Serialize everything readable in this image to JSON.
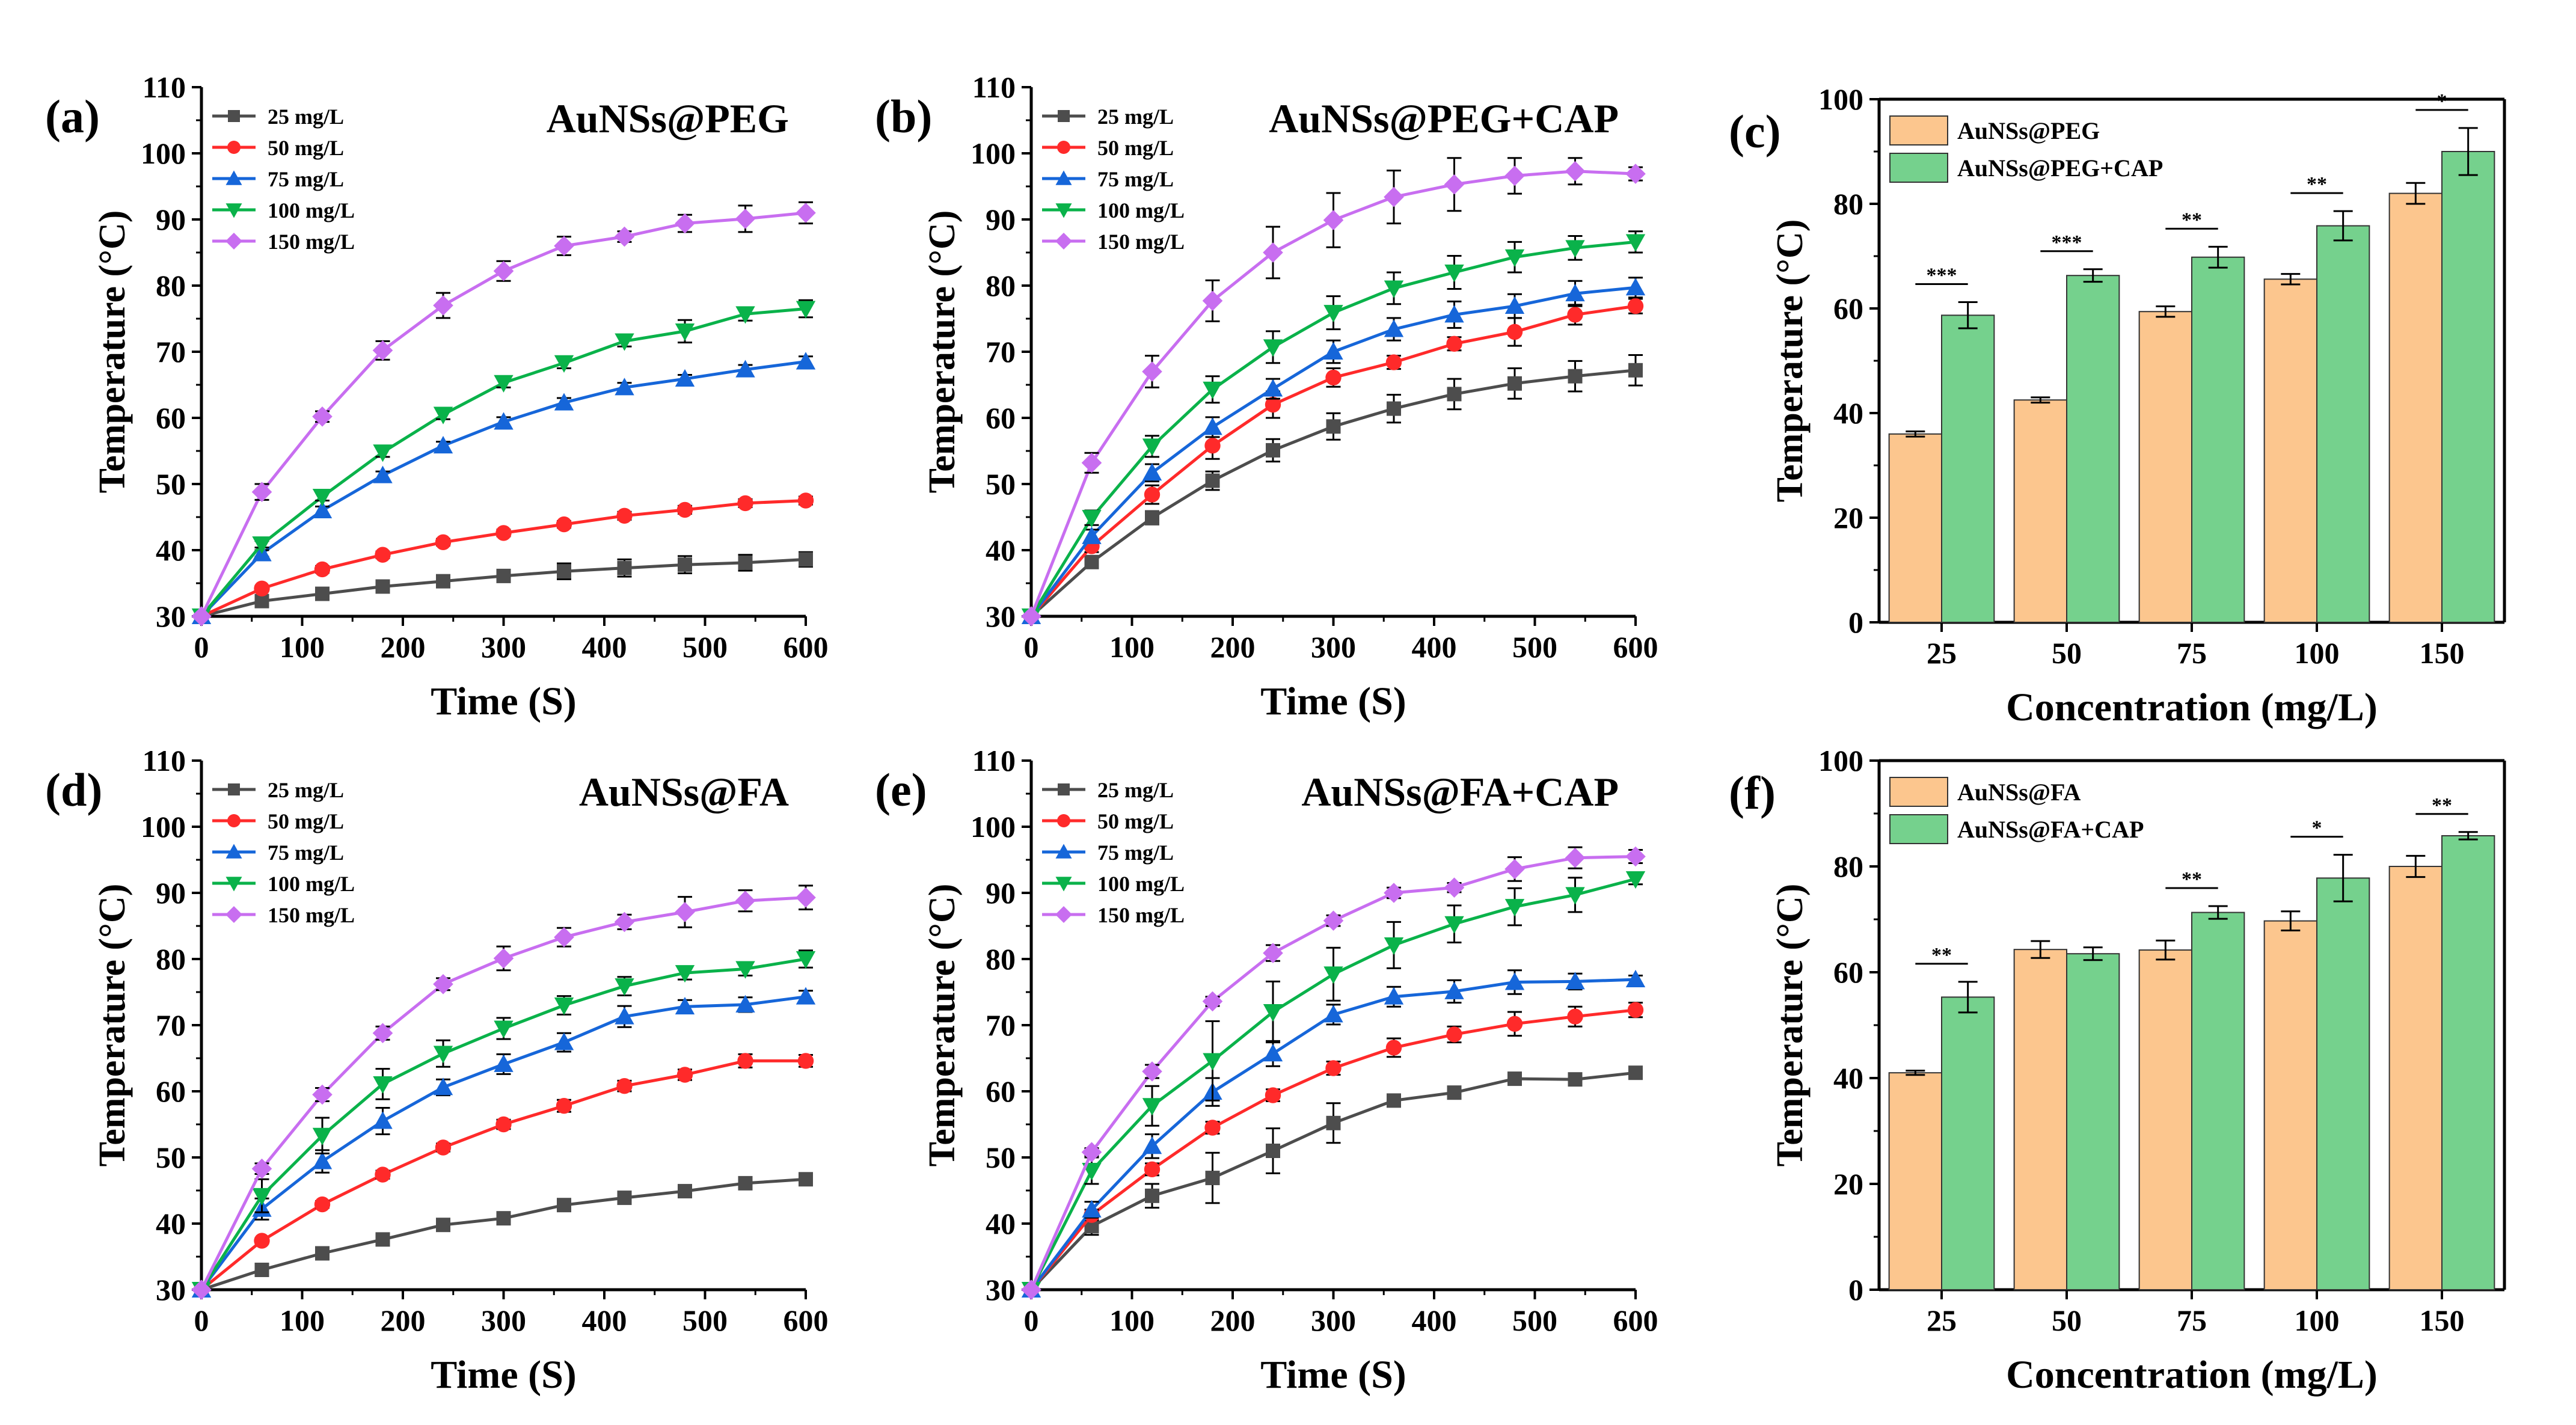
{
  "chart_data": [
    {
      "panel_label": "(a)",
      "title": "AuNSs@PEG",
      "type": "line",
      "xlabel": "Time (S)",
      "ylabel": "Temperature (°C)",
      "xlim": [
        0,
        600
      ],
      "ylim": [
        30,
        110
      ],
      "xticks": [
        0,
        100,
        200,
        300,
        400,
        500,
        600
      ],
      "yticks": [
        30,
        40,
        50,
        60,
        70,
        80,
        90,
        100,
        110
      ],
      "x": [
        0,
        60,
        120,
        180,
        240,
        300,
        360,
        420,
        480,
        540,
        600
      ],
      "legend_position": "top-left",
      "series": [
        {
          "name": "25 mg/L",
          "color": "#4d4d4d",
          "marker": "square",
          "values": [
            30,
            32.3,
            33.4,
            34.5,
            35.3,
            36.1,
            36.8,
            37.3,
            37.8,
            38.1,
            38.6
          ],
          "errors": [
            0.3,
            0.4,
            0.5,
            0.5,
            0.6,
            0.6,
            1.2,
            1.3,
            1.3,
            1.2,
            1.1
          ]
        },
        {
          "name": "50 mg/L",
          "color": "#ff2a2a",
          "marker": "circle",
          "values": [
            30,
            34.2,
            37.1,
            39.3,
            41.2,
            42.6,
            43.9,
            45.2,
            46.1,
            47.1,
            47.5
          ],
          "errors": [
            0.3,
            0.4,
            0.5,
            0.5,
            0.5,
            0.5,
            0.5,
            0.6,
            0.6,
            0.6,
            0.6
          ]
        },
        {
          "name": "75 mg/L",
          "color": "#1666d9",
          "marker": "triangle-up",
          "values": [
            30,
            39.5,
            46.0,
            51.3,
            55.8,
            59.4,
            62.3,
            64.6,
            65.9,
            67.3,
            68.5
          ],
          "errors": [
            0.3,
            0.5,
            0.6,
            0.6,
            0.6,
            0.7,
            0.7,
            0.7,
            0.6,
            0.7,
            0.8
          ]
        },
        {
          "name": "100 mg/L",
          "color": "#0ab24a",
          "marker": "triangle-down",
          "values": [
            30,
            40.9,
            48.1,
            54.8,
            60.5,
            65.3,
            68.3,
            71.6,
            73.1,
            75.7,
            76.5
          ],
          "errors": [
            0.3,
            0.5,
            0.6,
            0.7,
            0.7,
            0.7,
            0.8,
            0.8,
            1.7,
            1.0,
            1.3
          ]
        },
        {
          "name": "150 mg/L",
          "color": "#c86ef0",
          "marker": "diamond",
          "values": [
            30,
            48.8,
            60.2,
            70.2,
            77.0,
            82.2,
            86.0,
            87.4,
            89.4,
            90.1,
            91.0
          ],
          "errors": [
            0.3,
            1.2,
            0.8,
            1.4,
            1.9,
            1.5,
            1.4,
            0.8,
            1.3,
            2.0,
            1.6
          ]
        }
      ]
    },
    {
      "panel_label": "(b)",
      "title": "AuNSs@PEG+CAP",
      "type": "line",
      "xlabel": "Time (S)",
      "ylabel": "Temperature (°C)",
      "xlim": [
        0,
        600
      ],
      "ylim": [
        30,
        110
      ],
      "xticks": [
        0,
        100,
        200,
        300,
        400,
        500,
        600
      ],
      "yticks": [
        30,
        40,
        50,
        60,
        70,
        80,
        90,
        100,
        110
      ],
      "x": [
        0,
        60,
        120,
        180,
        240,
        300,
        360,
        420,
        480,
        540,
        600
      ],
      "legend_position": "top-left",
      "series": [
        {
          "name": "25 mg/L",
          "color": "#4d4d4d",
          "marker": "square",
          "values": [
            30,
            38.2,
            44.9,
            50.5,
            55.1,
            58.7,
            61.4,
            63.6,
            65.2,
            66.3,
            67.2
          ],
          "errors": [
            0.3,
            0.7,
            1.0,
            1.4,
            1.7,
            2.0,
            2.1,
            2.3,
            2.3,
            2.3,
            2.3
          ]
        },
        {
          "name": "50 mg/L",
          "color": "#ff2a2a",
          "marker": "circle",
          "values": [
            30,
            40.6,
            48.4,
            55.8,
            62.0,
            66.1,
            68.4,
            71.2,
            73.0,
            75.6,
            76.9
          ],
          "errors": [
            0.3,
            0.9,
            1.4,
            2.0,
            2.0,
            1.4,
            1.0,
            1.0,
            2.1,
            1.5,
            1.1
          ]
        },
        {
          "name": "75 mg/L",
          "color": "#1666d9",
          "marker": "triangle-up",
          "values": [
            30,
            42.1,
            51.7,
            58.6,
            64.4,
            70.0,
            73.4,
            75.6,
            76.9,
            78.8,
            79.7
          ],
          "errors": [
            0.3,
            1.0,
            1.3,
            1.5,
            1.5,
            1.7,
            1.7,
            2.0,
            1.8,
            1.9,
            1.5
          ]
        },
        {
          "name": "100 mg/L",
          "color": "#0ab24a",
          "marker": "triangle-down",
          "values": [
            30,
            44.9,
            55.7,
            64.3,
            70.7,
            75.9,
            79.6,
            82.0,
            84.3,
            85.7,
            86.6
          ],
          "errors": [
            0.3,
            1.1,
            1.6,
            2.0,
            2.4,
            2.5,
            2.4,
            2.5,
            2.3,
            1.8,
            1.6
          ]
        },
        {
          "name": "150 mg/L",
          "color": "#c86ef0",
          "marker": "diamond",
          "values": [
            30,
            53.2,
            67.0,
            77.7,
            85.0,
            89.9,
            93.4,
            95.3,
            96.6,
            97.3,
            96.9
          ],
          "errors": [
            0.3,
            1.5,
            2.4,
            3.1,
            3.9,
            4.1,
            4.0,
            4.0,
            2.7,
            2.0,
            1.0
          ]
        }
      ]
    },
    {
      "panel_label": "(c)",
      "type": "bar",
      "xlabel": "Concentration (mg/L)",
      "ylabel": "Temperature (°C)",
      "ylim": [
        0,
        100
      ],
      "yticks": [
        0,
        20,
        40,
        60,
        80,
        100
      ],
      "categories": [
        "25",
        "50",
        "75",
        "100",
        "150"
      ],
      "legend_position": "top-left",
      "series": [
        {
          "name": "AuNSs@PEG",
          "color": "#fcc68e",
          "values": [
            36.0,
            42.5,
            59.4,
            65.6,
            82.0
          ],
          "errors": [
            0.5,
            0.5,
            1.0,
            1.0,
            2.0
          ]
        },
        {
          "name": "AuNSs@PEG+CAP",
          "color": "#75d18d",
          "values": [
            58.7,
            66.3,
            69.8,
            75.8,
            90.0
          ],
          "errors": [
            2.5,
            1.2,
            2.0,
            2.8,
            4.5
          ]
        }
      ],
      "significance": [
        "***",
        "***",
        "**",
        "**",
        "*"
      ]
    },
    {
      "panel_label": "(d)",
      "title": "AuNSs@FA",
      "type": "line",
      "xlabel": "Time (S)",
      "ylabel": "Temperature (°C)",
      "xlim": [
        0,
        600
      ],
      "ylim": [
        30,
        110
      ],
      "xticks": [
        0,
        100,
        200,
        300,
        400,
        500,
        600
      ],
      "yticks": [
        30,
        40,
        50,
        60,
        70,
        80,
        90,
        100,
        110
      ],
      "x": [
        0,
        60,
        120,
        180,
        240,
        300,
        360,
        420,
        480,
        540,
        600
      ],
      "legend_position": "top-left",
      "series": [
        {
          "name": "25 mg/L",
          "color": "#4d4d4d",
          "marker": "square",
          "values": [
            30,
            33.0,
            35.5,
            37.6,
            39.8,
            40.8,
            42.8,
            43.9,
            44.9,
            46.1,
            46.7
          ],
          "errors": [
            0.3,
            0.3,
            0.4,
            0.4,
            0.4,
            0.5,
            0.5,
            0.5,
            0.5,
            0.6,
            0.6
          ]
        },
        {
          "name": "50 mg/L",
          "color": "#ff2a2a",
          "marker": "circle",
          "values": [
            30,
            37.4,
            42.9,
            47.4,
            51.5,
            55.0,
            57.8,
            60.8,
            62.5,
            64.6,
            64.6
          ],
          "errors": [
            0.3,
            0.4,
            0.5,
            0.6,
            0.6,
            0.7,
            0.9,
            0.8,
            0.8,
            1.0,
            0.9
          ]
        },
        {
          "name": "75 mg/L",
          "color": "#1666d9",
          "marker": "triangle-up",
          "values": [
            30,
            42.2,
            49.4,
            55.5,
            60.6,
            64.1,
            67.4,
            71.3,
            72.8,
            73.1,
            74.3
          ],
          "errors": [
            0.3,
            1.6,
            1.7,
            2.0,
            1.2,
            1.5,
            1.4,
            1.6,
            1.0,
            1.1,
            0.9
          ]
        },
        {
          "name": "100 mg/L",
          "color": "#0ab24a",
          "marker": "triangle-down",
          "values": [
            30,
            44.2,
            53.3,
            61.1,
            65.7,
            69.5,
            73.0,
            75.9,
            77.9,
            78.5,
            80.0
          ],
          "errors": [
            0.3,
            2.5,
            2.7,
            2.3,
            2.0,
            1.6,
            1.4,
            1.4,
            1.0,
            1.0,
            1.3
          ]
        },
        {
          "name": "150 mg/L",
          "color": "#c86ef0",
          "marker": "diamond",
          "values": [
            30,
            48.3,
            59.5,
            68.8,
            76.2,
            80.1,
            83.3,
            85.6,
            87.1,
            88.8,
            89.3
          ],
          "errors": [
            0.3,
            0.8,
            1.0,
            1.0,
            0.9,
            1.8,
            1.4,
            1.1,
            2.3,
            1.6,
            1.8
          ]
        }
      ]
    },
    {
      "panel_label": "(e)",
      "title": "AuNSs@FA+CAP",
      "type": "line",
      "xlabel": "Time (S)",
      "ylabel": "Temperature (°C)",
      "xlim": [
        0,
        600
      ],
      "ylim": [
        30,
        110
      ],
      "xticks": [
        0,
        100,
        200,
        300,
        400,
        500,
        600
      ],
      "yticks": [
        30,
        40,
        50,
        60,
        70,
        80,
        90,
        100,
        110
      ],
      "x": [
        0,
        60,
        120,
        180,
        240,
        300,
        360,
        420,
        480,
        540,
        600
      ],
      "legend_position": "top-left",
      "series": [
        {
          "name": "25 mg/L",
          "color": "#4d4d4d",
          "marker": "square",
          "values": [
            30,
            39.6,
            44.2,
            46.9,
            51.0,
            55.2,
            58.6,
            59.8,
            61.9,
            61.8,
            62.8
          ],
          "errors": [
            0.3,
            1.3,
            1.8,
            3.8,
            3.4,
            3.0,
            0.9,
            0.8,
            0.6,
            0.5,
            0.6
          ]
        },
        {
          "name": "50 mg/L",
          "color": "#ff2a2a",
          "marker": "circle",
          "values": [
            30,
            41.3,
            48.2,
            54.5,
            59.4,
            63.5,
            66.6,
            68.6,
            70.2,
            71.3,
            72.3
          ],
          "errors": [
            0.3,
            0.8,
            0.9,
            0.9,
            0.9,
            1.0,
            1.4,
            1.2,
            1.8,
            1.5,
            1.1
          ]
        },
        {
          "name": "75 mg/L",
          "color": "#1666d9",
          "marker": "triangle-up",
          "values": [
            30,
            42.1,
            51.7,
            59.9,
            65.7,
            71.6,
            74.3,
            75.1,
            76.5,
            76.6,
            76.9
          ],
          "errors": [
            0.3,
            1.2,
            1.8,
            2.1,
            1.9,
            1.5,
            1.5,
            1.7,
            1.8,
            1.2,
            0.6
          ]
        },
        {
          "name": "100 mg/L",
          "color": "#0ab24a",
          "marker": "triangle-down",
          "values": [
            30,
            48.0,
            57.8,
            64.6,
            72.0,
            77.7,
            82.1,
            85.3,
            87.9,
            89.7,
            92.1
          ],
          "errors": [
            0.3,
            2.0,
            3.0,
            6.0,
            4.6,
            4.0,
            3.5,
            2.8,
            2.8,
            2.6,
            0.8
          ]
        },
        {
          "name": "150 mg/L",
          "color": "#c86ef0",
          "marker": "diamond",
          "values": [
            30,
            50.8,
            63.0,
            73.6,
            80.9,
            85.8,
            90.0,
            90.8,
            93.6,
            95.3,
            95.5
          ],
          "errors": [
            0.3,
            0.6,
            1.0,
            0.7,
            1.2,
            0.8,
            0.8,
            0.7,
            1.8,
            1.6,
            1.0
          ]
        }
      ]
    },
    {
      "panel_label": "(f)",
      "type": "bar",
      "xlabel": "Concentration (mg/L)",
      "ylabel": "Temperature (°C)",
      "ylim": [
        0,
        100
      ],
      "yticks": [
        0,
        20,
        40,
        60,
        80,
        100
      ],
      "categories": [
        "25",
        "50",
        "75",
        "100",
        "150"
      ],
      "legend_position": "top-left",
      "series": [
        {
          "name": "AuNSs@FA",
          "color": "#fcc68e",
          "values": [
            41.0,
            64.3,
            64.2,
            69.7,
            80.0
          ],
          "errors": [
            0.4,
            1.6,
            1.8,
            1.8,
            2.0
          ]
        },
        {
          "name": "AuNSs@FA+CAP",
          "color": "#75d18d",
          "values": [
            55.3,
            63.5,
            71.3,
            77.8,
            85.8
          ],
          "errors": [
            2.9,
            1.2,
            1.2,
            4.4,
            0.7
          ]
        }
      ],
      "significance": [
        "**",
        "",
        "**",
        "*",
        "**"
      ]
    }
  ]
}
